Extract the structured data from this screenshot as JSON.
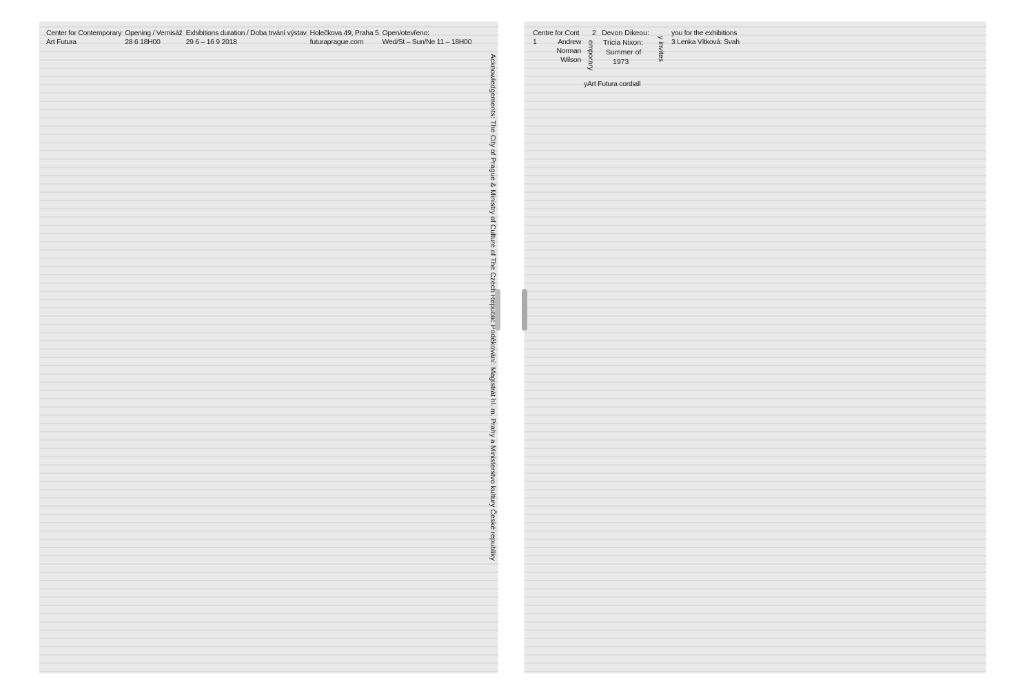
{
  "left_page": {
    "header": [
      {
        "line1": "Center for Contemporary",
        "line2": "Art Futura"
      },
      {
        "line1": "Opening / Vernisáž",
        "line2": "28 6 18H00"
      },
      {
        "line1": "Exhibitions duration / Doba trvání výstav",
        "line2": "29 6 – 16 9 2018"
      },
      {
        "line1": "Holečkova 49, Praha 5",
        "line2": "futuraprague.com"
      },
      {
        "line1": "Open/otevřeno:",
        "line2": "Wed/St – Sun/Ne 11 – 18H00"
      }
    ],
    "acknowledgements": "Acknowledgements: The City of Prague & Ministry of Culture of The Czech Republic Poděkování: Magistrát hl. m. Prahy a Ministerstvo kultury České republiky"
  },
  "right_page": {
    "header_left": "Centre for Cont",
    "num1": "1",
    "num2": "2",
    "num3": "3 Lenka Vítková: Svah",
    "artist1": [
      "Andrew",
      "Norman",
      "Wilson"
    ],
    "arc_text": [
      "Devon Dikeou:",
      "Tricia Nixon:",
      "Summer of",
      "1973"
    ],
    "emporary": "emporary",
    "cordial": "yArt Futura cordiall",
    "invites": "y invites",
    "thanks": "you for the exhibitions"
  }
}
